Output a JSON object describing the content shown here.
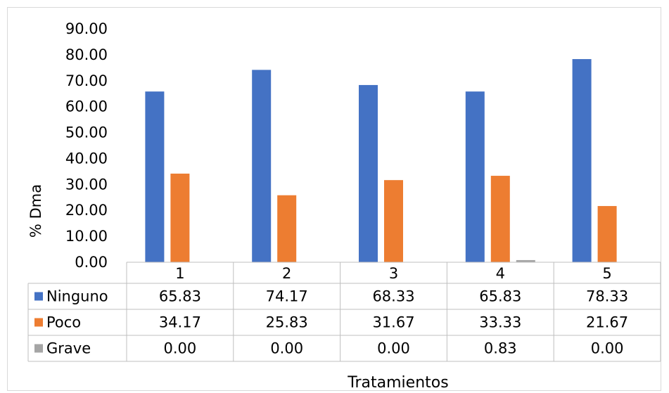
{
  "chart_data": {
    "type": "bar",
    "categories": [
      "1",
      "2",
      "3",
      "4",
      "5"
    ],
    "series": [
      {
        "name": "Ninguno",
        "values": [
          65.83,
          74.17,
          68.33,
          65.83,
          78.33
        ],
        "display": [
          "65.83",
          "74.17",
          "68.33",
          "65.83",
          "78.33"
        ],
        "color": "#4472C4"
      },
      {
        "name": "Poco",
        "values": [
          34.17,
          25.83,
          31.67,
          33.33,
          21.67
        ],
        "display": [
          "34.17",
          "25.83",
          "31.67",
          "33.33",
          "21.67"
        ],
        "color": "#ED7D31"
      },
      {
        "name": "Grave",
        "values": [
          0.0,
          0.0,
          0.0,
          0.83,
          0.0
        ],
        "display": [
          "0.00",
          "0.00",
          "0.00",
          "0.83",
          "0.00"
        ],
        "color": "#A5A5A5"
      }
    ],
    "ylim": [
      0,
      90
    ],
    "yticks": [
      "0.00",
      "10.00",
      "20.00",
      "30.00",
      "40.00",
      "50.00",
      "60.00",
      "70.00",
      "80.00",
      "90.00"
    ],
    "ylabel": "% Dma",
    "xlabel": "Tratamientos",
    "grid": false,
    "legend": "data-table"
  }
}
